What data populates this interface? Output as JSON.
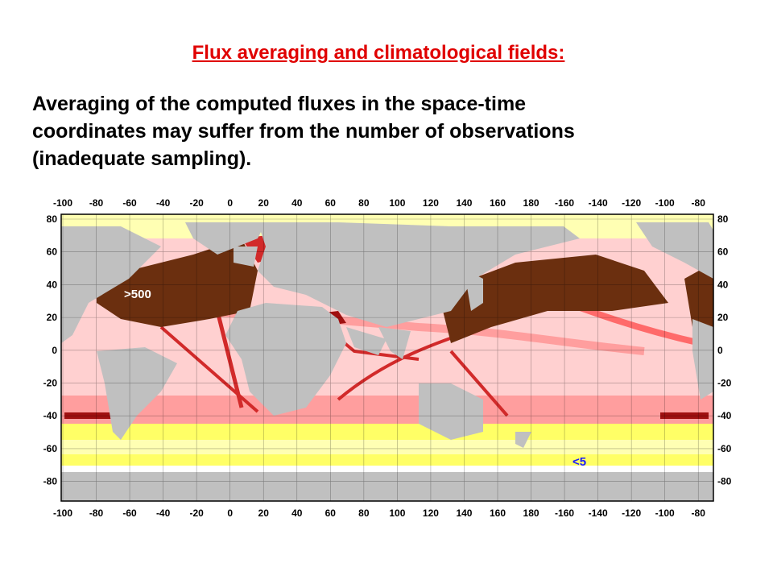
{
  "title": "Flux averaging and climatological fields:",
  "body_lines": [
    "Averaging of the computed fluxes in the space-time",
    "coordinates may suffer from the number of observations",
    "(inadequate sampling)."
  ],
  "map": {
    "x_ticks": [
      "-100",
      "-80",
      "-60",
      "-40",
      "-20",
      "0",
      "20",
      "40",
      "60",
      "80",
      "100",
      "120",
      "140",
      "160",
      "180",
      "-160",
      "-140",
      "-120",
      "-100",
      "-80"
    ],
    "y_ticks": [
      "80",
      "60",
      "40",
      "20",
      "0",
      "-20",
      "-40",
      "-60",
      "-80"
    ],
    "annotations": [
      {
        "text": ">500",
        "color": "#ffffff"
      },
      {
        "text": "<5",
        "color": "#1a1aff"
      }
    ],
    "colors": {
      "land": "#c0c0c0",
      "ice": "#ffffff",
      "very_low": "#ffff66",
      "low": "#ffffb3",
      "light": "#ffd0d0",
      "pink": "#ff9e9e",
      "medium": "#ff6a6a",
      "red": "#d22a2a",
      "high": "#a01010",
      "highest": "#6b2f0f"
    }
  }
}
